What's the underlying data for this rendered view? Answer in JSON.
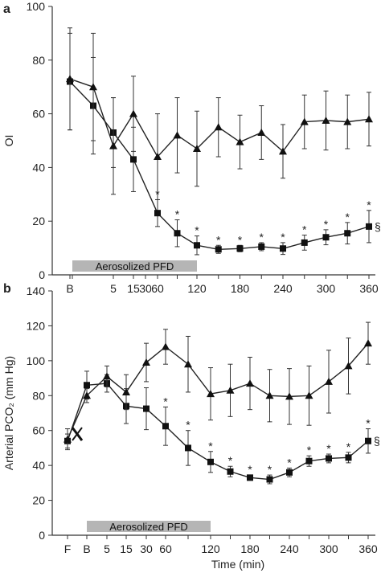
{
  "chart_data": [
    {
      "type": "line",
      "panel": "a",
      "ylabel": "OI",
      "xlabel": "",
      "ylim": [
        0,
        100
      ],
      "yticks": [
        0,
        20,
        40,
        60,
        80,
        100
      ],
      "categories": [
        "B",
        "",
        "5",
        "15",
        "30",
        "60",
        "",
        "120",
        "",
        "180",
        "",
        "240",
        "",
        "300",
        "",
        "360"
      ],
      "cat_times": [
        -10,
        0,
        15,
        30,
        45,
        60,
        90,
        120,
        150,
        180,
        210,
        240,
        270,
        300,
        330,
        360
      ],
      "treatment_bar": {
        "label": "Aerosolized PFD",
        "from": 0,
        "to": 120
      },
      "series": [
        {
          "marker": "square",
          "points": [
            {
              "x": -10,
              "y": 72,
              "err": 18
            },
            {
              "x": 5,
              "y": 63,
              "err": 18
            },
            {
              "x": 15,
              "y": 53,
              "err": 13
            },
            {
              "x": 30,
              "y": 43,
              "err": 12
            },
            {
              "x": 60,
              "y": 23,
              "err": 5
            },
            {
              "x": 90,
              "y": 15.5,
              "err": 5
            },
            {
              "x": 120,
              "y": 11,
              "err": 3.5
            },
            {
              "x": 150,
              "y": 9.5,
              "err": 1.5
            },
            {
              "x": 180,
              "y": 9.8,
              "err": 1.2
            },
            {
              "x": 210,
              "y": 10.5,
              "err": 1.5
            },
            {
              "x": 240,
              "y": 9.8,
              "err": 2.2
            },
            {
              "x": 270,
              "y": 12,
              "err": 2.8
            },
            {
              "x": 300,
              "y": 14,
              "err": 2.8
            },
            {
              "x": 330,
              "y": 15.5,
              "err": 4
            },
            {
              "x": 360,
              "y": 18,
              "err": 6
            }
          ]
        },
        {
          "marker": "triangle",
          "points": [
            {
              "x": -10,
              "y": 73,
              "err": 19
            },
            {
              "x": 5,
              "y": 70,
              "err": 20
            },
            {
              "x": 15,
              "y": 48,
              "err": 18
            },
            {
              "x": 30,
              "y": 60,
              "err": 14
            },
            {
              "x": 60,
              "y": 44,
              "err": 16
            },
            {
              "x": 90,
              "y": 52,
              "err": 14
            },
            {
              "x": 120,
              "y": 47,
              "err": 14
            },
            {
              "x": 150,
              "y": 55,
              "err": 11
            },
            {
              "x": 180,
              "y": 49.5,
              "err": 10
            },
            {
              "x": 210,
              "y": 53,
              "err": 10
            },
            {
              "x": 240,
              "y": 46,
              "err": 10
            },
            {
              "x": 270,
              "y": 57,
              "err": 10
            },
            {
              "x": 300,
              "y": 57.5,
              "err": 11
            },
            {
              "x": 330,
              "y": 57,
              "err": 10
            },
            {
              "x": 360,
              "y": 58,
              "err": 10
            }
          ]
        }
      ],
      "annotations": [
        {
          "x": 60,
          "y": 23,
          "text": "*"
        },
        {
          "x": 90,
          "y": 15.5,
          "text": "*"
        },
        {
          "x": 120,
          "y": 11,
          "text": "*"
        },
        {
          "x": 150,
          "y": 9.5,
          "text": "*"
        },
        {
          "x": 180,
          "y": 9.8,
          "text": "*"
        },
        {
          "x": 210,
          "y": 10.5,
          "text": "*"
        },
        {
          "x": 240,
          "y": 9.8,
          "text": "*"
        },
        {
          "x": 270,
          "y": 12,
          "text": "*"
        },
        {
          "x": 300,
          "y": 14,
          "text": "*"
        },
        {
          "x": 330,
          "y": 15.5,
          "text": "*"
        },
        {
          "x": 360,
          "y": 18,
          "text": "*"
        },
        {
          "x": 360,
          "y": 18,
          "text": "§"
        }
      ]
    },
    {
      "type": "line",
      "panel": "b",
      "ylabel": "Arterial PCO₂ (mm Hg)",
      "xlabel": "Time (min)",
      "ylim": [
        0,
        140
      ],
      "yticks": [
        0,
        20,
        40,
        60,
        80,
        100,
        120,
        140
      ],
      "categories": [
        "F",
        "B",
        "5",
        "15",
        "30",
        "60",
        "",
        "120",
        "",
        "180",
        "",
        "240",
        "",
        "300",
        "",
        "360"
      ],
      "cat_times": [
        -20,
        -10,
        5,
        15,
        30,
        60,
        90,
        120,
        150,
        180,
        210,
        240,
        270,
        300,
        330,
        360
      ],
      "treatment_bar": {
        "label": "Aerosolized PFD",
        "from": 0,
        "to": 120
      },
      "series": [
        {
          "marker": "square",
          "points": [
            {
              "x": -20,
              "y": 54,
              "err": 4
            },
            {
              "x": -10,
              "y": 86,
              "err": 8
            },
            {
              "x": 5,
              "y": 87,
              "err": 5
            },
            {
              "x": 15,
              "y": 74,
              "err": 10
            },
            {
              "x": 30,
              "y": 72.5,
              "err": 12
            },
            {
              "x": 60,
              "y": 62.5,
              "err": 11
            },
            {
              "x": 90,
              "y": 50,
              "err": 10
            },
            {
              "x": 120,
              "y": 42,
              "err": 6
            },
            {
              "x": 150,
              "y": 36.5,
              "err": 3
            },
            {
              "x": 180,
              "y": 33,
              "err": 1.5
            },
            {
              "x": 210,
              "y": 32,
              "err": 2.5
            },
            {
              "x": 240,
              "y": 36,
              "err": 2.5
            },
            {
              "x": 270,
              "y": 42.5,
              "err": 3
            },
            {
              "x": 300,
              "y": 44,
              "err": 2.5
            },
            {
              "x": 330,
              "y": 44.5,
              "err": 3
            },
            {
              "x": 360,
              "y": 54,
              "err": 7
            }
          ]
        },
        {
          "marker": "triangle",
          "points": [
            {
              "x": -20,
              "y": 55,
              "err": 6
            },
            {
              "x": -10,
              "y": 80,
              "err": 4
            },
            {
              "x": 5,
              "y": 91,
              "err": 6
            },
            {
              "x": 15,
              "y": 82,
              "err": 10
            },
            {
              "x": 30,
              "y": 99,
              "err": 11
            },
            {
              "x": 60,
              "y": 108,
              "err": 10
            },
            {
              "x": 90,
              "y": 98,
              "err": 16
            },
            {
              "x": 120,
              "y": 81,
              "err": 15
            },
            {
              "x": 150,
              "y": 83,
              "err": 15
            },
            {
              "x": 180,
              "y": 87,
              "err": 15
            },
            {
              "x": 210,
              "y": 80,
              "err": 15
            },
            {
              "x": 240,
              "y": 79.5,
              "err": 16
            },
            {
              "x": 270,
              "y": 80,
              "err": 17
            },
            {
              "x": 300,
              "y": 88,
              "err": 18
            },
            {
              "x": 330,
              "y": 97,
              "err": 16
            },
            {
              "x": 360,
              "y": 110,
              "err": 12
            }
          ]
        }
      ],
      "break_marker_at": -15,
      "annotations": [
        {
          "x": 60,
          "y": 62.5,
          "text": "*"
        },
        {
          "x": 90,
          "y": 50,
          "text": "*"
        },
        {
          "x": 120,
          "y": 42,
          "text": "*"
        },
        {
          "x": 150,
          "y": 36.5,
          "text": "*"
        },
        {
          "x": 180,
          "y": 33,
          "text": "*"
        },
        {
          "x": 210,
          "y": 32,
          "text": "*"
        },
        {
          "x": 240,
          "y": 36,
          "text": "*"
        },
        {
          "x": 270,
          "y": 42.5,
          "text": "*"
        },
        {
          "x": 300,
          "y": 44,
          "text": "*"
        },
        {
          "x": 330,
          "y": 44.5,
          "text": "*"
        },
        {
          "x": 360,
          "y": 54,
          "text": "*"
        },
        {
          "x": 360,
          "y": 54,
          "text": "§"
        }
      ]
    }
  ],
  "panels": [
    {
      "letter": "a"
    },
    {
      "letter": "b"
    }
  ]
}
